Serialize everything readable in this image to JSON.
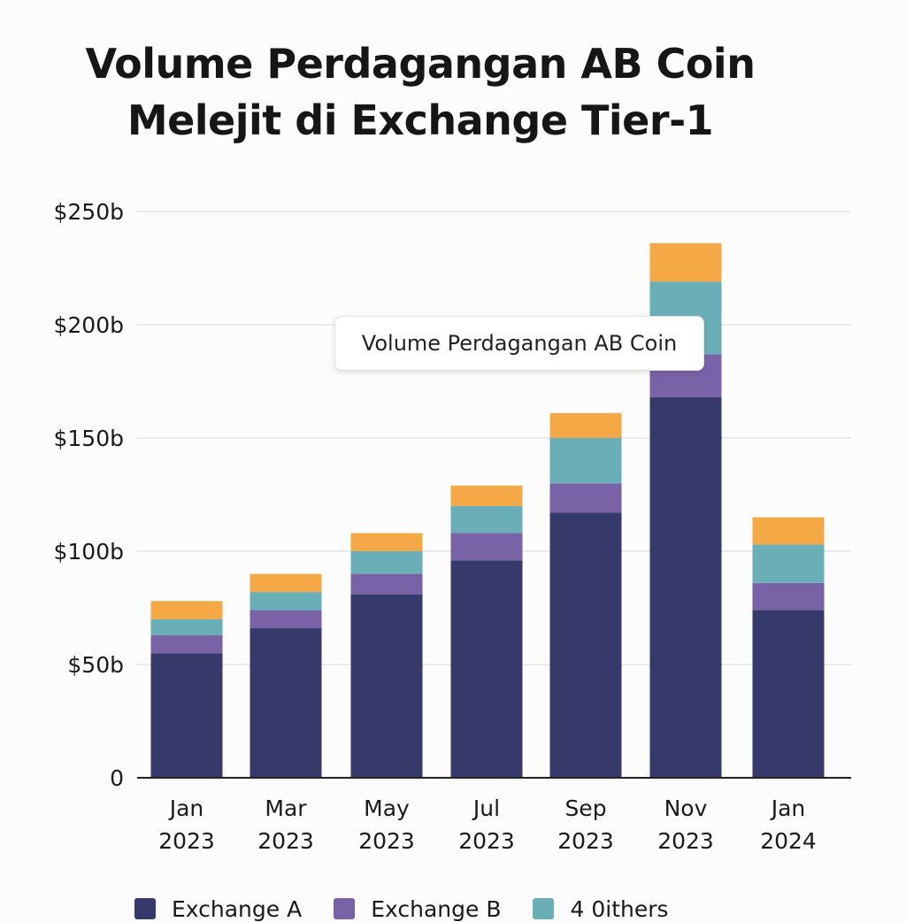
{
  "chart_data": {
    "type": "bar",
    "stacked": true,
    "title_lines": [
      "Volume Perdagangan AB Coin",
      "Melejit di Exchange Tier-1"
    ],
    "categories": [
      [
        "Jan",
        "2023"
      ],
      [
        "Mar",
        "2023"
      ],
      [
        "May",
        "2023"
      ],
      [
        "Jul",
        "2023"
      ],
      [
        "Sep",
        "2023"
      ],
      [
        "Nov",
        "2023"
      ],
      [
        "Jan",
        "2024"
      ]
    ],
    "y_ticks": [
      {
        "value": 0,
        "label": "0"
      },
      {
        "value": 50,
        "label": "$50b"
      },
      {
        "value": 100,
        "label": "$100b"
      },
      {
        "value": 150,
        "label": "$150b"
      },
      {
        "value": 200,
        "label": "$200b"
      },
      {
        "value": 250,
        "label": "$250b"
      }
    ],
    "ylim": [
      0,
      250
    ],
    "grid": true,
    "series": [
      {
        "name": "Exchange A",
        "color": "#353a6b",
        "values": [
          55,
          66,
          81,
          96,
          117,
          168,
          74
        ]
      },
      {
        "name": "Exchange B",
        "color": "#7a62a6",
        "values": [
          8,
          8,
          9,
          12,
          13,
          19,
          12
        ]
      },
      {
        "name": "4 0ithers",
        "color": "#6aaeb8",
        "values": [
          7,
          8,
          10,
          12,
          20,
          32,
          17
        ]
      },
      {
        "name": "",
        "color": "#f4a846",
        "values": [
          8,
          8,
          8,
          9,
          11,
          17,
          12
        ]
      }
    ],
    "tooltip": "Volume Perdagangan AB Coin",
    "legend_position": "bottom"
  }
}
